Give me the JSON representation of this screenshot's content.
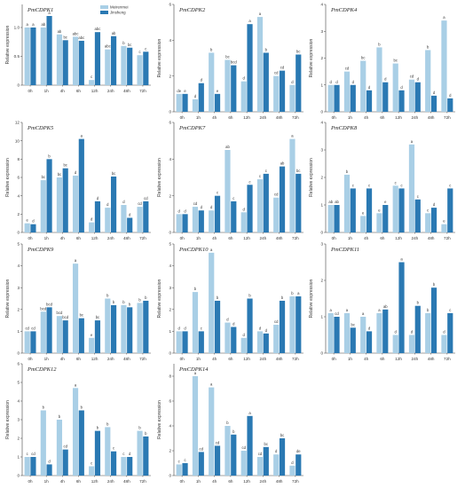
{
  "colors": {
    "series1": "#a9cfe6",
    "series2": "#2a79b3"
  },
  "chart_data": [
    {
      "type": "bar",
      "title": "PmCDPK1",
      "ylabel": "Relative expression",
      "ylim": [
        0,
        1.4
      ],
      "yticks": [
        0,
        0.5,
        1.0
      ],
      "categories": [
        "0h",
        "1h",
        "4h",
        "6h",
        "12h",
        "24h",
        "48h",
        "72h"
      ],
      "legend": {
        "entries": [
          "Meirenmei",
          "Jinsheng"
        ],
        "placement": "top-center"
      },
      "series": [
        {
          "name": "Meirenmei",
          "values": [
            1.0,
            1.0,
            0.88,
            0.84,
            0.09,
            0.62,
            0.68,
            0.52
          ],
          "labels": [
            "a",
            "ab",
            "ab",
            "abc",
            "c",
            "abc",
            "b",
            "c"
          ]
        },
        {
          "name": "Jinsheng",
          "values": [
            1.0,
            1.2,
            0.78,
            0.77,
            0.92,
            0.85,
            0.65,
            0.58
          ],
          "labels": [
            "a",
            "a",
            "bc",
            "abc",
            "abc",
            "ab",
            "bc",
            "c"
          ]
        }
      ]
    },
    {
      "type": "bar",
      "title": "PmCDPK2",
      "ylabel": "Relative expression",
      "ylim": [
        0,
        6
      ],
      "yticks": [
        0,
        2,
        4,
        6
      ],
      "categories": [
        "0h",
        "1h",
        "4h",
        "6h",
        "12h",
        "24h",
        "48h",
        "72h"
      ],
      "series": [
        {
          "name": "Meirenmei",
          "values": [
            1.0,
            0.7,
            3.3,
            2.9,
            1.7,
            5.3,
            2.0,
            1.5
          ],
          "labels": [
            "de",
            "d",
            "b",
            "bc",
            "d",
            "a",
            "cd",
            "d"
          ]
        },
        {
          "name": "Jinsheng",
          "values": [
            1.0,
            1.6,
            1.0,
            2.6,
            4.9,
            3.3,
            2.3,
            3.2
          ],
          "labels": [
            "e",
            "d",
            "e",
            "bcd",
            "a",
            "b",
            "cd",
            "bc"
          ]
        }
      ]
    },
    {
      "type": "bar",
      "title": "PmCDPK4",
      "ylabel": "Relative expression",
      "ylim": [
        0,
        4
      ],
      "yticks": [
        0,
        1,
        2,
        3,
        4
      ],
      "categories": [
        "0h",
        "1h",
        "4h",
        "6h",
        "12h",
        "24h",
        "48h",
        "72h"
      ],
      "series": [
        {
          "name": "Meirenmei",
          "values": [
            1.0,
            1.5,
            1.9,
            2.4,
            1.8,
            1.2,
            2.3,
            3.4
          ],
          "labels": [
            "d",
            "cd",
            "bc",
            "b",
            "bc",
            "cd",
            "b",
            "a"
          ]
        },
        {
          "name": "Jinsheng",
          "values": [
            1.0,
            1.0,
            0.8,
            1.1,
            0.8,
            1.1,
            0.6,
            0.5
          ],
          "labels": [
            "d",
            "d",
            "d",
            "d",
            "d",
            "d",
            "d",
            "d"
          ]
        }
      ]
    },
    {
      "type": "bar",
      "title": "PmCDPK5",
      "ylabel": "Relative expression",
      "ylim": [
        0,
        12
      ],
      "yticks": [
        0,
        2,
        4,
        6,
        8,
        10,
        12
      ],
      "categories": [
        "0h",
        "1h",
        "4h",
        "6h",
        "12h",
        "24h",
        "48h",
        "72h"
      ],
      "series": [
        {
          "name": "Meirenmei",
          "values": [
            1.0,
            5.7,
            6.0,
            6.2,
            1.1,
            2.7,
            3.0,
            2.8
          ],
          "labels": [
            "e",
            "bc",
            "bc",
            "d",
            "d",
            "d",
            "d",
            "cd"
          ]
        },
        {
          "name": "Jinsheng",
          "values": [
            0.9,
            8.0,
            7.0,
            10.2,
            3.4,
            6.1,
            1.6,
            3.4
          ],
          "labels": [
            "d",
            "b",
            "bc",
            "a",
            "d",
            "bc",
            "d",
            "cd"
          ]
        }
      ]
    },
    {
      "type": "bar",
      "title": "PmCDPK7",
      "ylabel": "Relative expression",
      "ylim": [
        0,
        6
      ],
      "yticks": [
        0,
        2,
        4,
        6
      ],
      "categories": [
        "0h",
        "1h",
        "4h",
        "6h",
        "12h",
        "24h",
        "48h",
        "72h"
      ],
      "series": [
        {
          "name": "Meirenmei",
          "values": [
            1.0,
            1.4,
            1.2,
            4.5,
            1.1,
            2.9,
            1.9,
            5.1
          ],
          "labels": [
            "d",
            "cd",
            "d",
            "ab",
            "d",
            "c",
            "cd",
            "a"
          ]
        },
        {
          "name": "Jinsheng",
          "values": [
            1.0,
            1.2,
            2.0,
            1.7,
            2.6,
            3.2,
            3.6,
            3.2
          ],
          "labels": [
            "d",
            "d",
            "c",
            "c",
            "c",
            "c",
            "ab",
            "bc"
          ]
        }
      ]
    },
    {
      "type": "bar",
      "title": "PmCDPK8",
      "ylabel": "Relative expression",
      "ylim": [
        0,
        4
      ],
      "yticks": [
        0,
        1,
        2,
        3,
        4
      ],
      "categories": [
        "0h",
        "1h",
        "4h",
        "6h",
        "12h",
        "24h",
        "48h",
        "72h"
      ],
      "series": [
        {
          "name": "Meirenmei",
          "values": [
            1.0,
            2.1,
            0.6,
            0.7,
            1.7,
            3.2,
            0.7,
            0.3
          ],
          "labels": [
            "ab",
            "b",
            "e",
            "e",
            "c",
            "a",
            "c",
            "e"
          ]
        },
        {
          "name": "Jinsheng",
          "values": [
            1.0,
            1.6,
            1.6,
            1.0,
            1.6,
            1.2,
            0.9,
            1.6
          ],
          "labels": [
            "ab",
            "c",
            "c",
            "e",
            "c",
            "c",
            "d",
            "c"
          ]
        }
      ]
    },
    {
      "type": "bar",
      "title": "PmCDPK9",
      "ylabel": "Relative expression",
      "ylim": [
        0,
        5
      ],
      "yticks": [
        0,
        1,
        2,
        3,
        4,
        5
      ],
      "categories": [
        "0h",
        "1h",
        "4h",
        "6h",
        "12h",
        "24h",
        "48h",
        "72h"
      ],
      "series": [
        {
          "name": "Meirenmei",
          "values": [
            1.0,
            1.9,
            1.7,
            4.1,
            0.7,
            2.5,
            2.2,
            2.3
          ],
          "labels": [
            "cd",
            "bcd",
            "bcd",
            "a",
            "e",
            "b",
            "b",
            "b"
          ]
        },
        {
          "name": "Jinsheng",
          "values": [
            1.0,
            2.1,
            1.5,
            1.6,
            1.5,
            2.2,
            2.1,
            2.4
          ],
          "labels": [
            "cd",
            "bcd",
            "bcd",
            "bc",
            "bc",
            "b",
            "b",
            "b"
          ]
        }
      ]
    },
    {
      "type": "bar",
      "title": "PmCDPK10",
      "ylabel": "Relative expression",
      "ylim": [
        0,
        5
      ],
      "yticks": [
        0,
        1,
        2,
        3,
        4,
        5
      ],
      "categories": [
        "0h",
        "1h",
        "4h",
        "6h",
        "12h",
        "24h",
        "48h",
        "72h"
      ],
      "series": [
        {
          "name": "Meirenmei",
          "values": [
            1.0,
            2.8,
            4.6,
            1.4,
            0.7,
            1.0,
            1.3,
            2.6
          ],
          "labels": [
            "d",
            "b",
            "a",
            "d",
            "d",
            "d",
            "cd",
            "b"
          ]
        },
        {
          "name": "Jinsheng",
          "values": [
            1.0,
            1.0,
            2.4,
            1.2,
            2.5,
            0.9,
            2.4,
            2.6
          ],
          "labels": [
            "d",
            "c",
            "b",
            "d",
            "b",
            "d",
            "b",
            "a"
          ]
        }
      ]
    },
    {
      "type": "bar",
      "title": "PmCDPK11",
      "ylabel": "Relative expression",
      "ylim": [
        0,
        3
      ],
      "yticks": [
        0,
        1,
        2,
        3
      ],
      "categories": [
        "0h",
        "1h",
        "4h",
        "6h",
        "12h",
        "24h",
        "48h",
        "72h"
      ],
      "series": [
        {
          "name": "Meirenmei",
          "values": [
            1.1,
            1.1,
            1.0,
            1.1,
            0.5,
            0.5,
            1.1,
            0.5
          ],
          "labels": [
            "a",
            "a",
            "a",
            "a",
            "d",
            "d",
            "b",
            "d"
          ]
        },
        {
          "name": "Jinsheng",
          "values": [
            1.0,
            0.7,
            0.6,
            1.2,
            2.5,
            1.3,
            1.8,
            1.1
          ],
          "labels": [
            "cd",
            "bc",
            "d",
            "ab",
            "a",
            "b",
            "b",
            "c"
          ]
        }
      ]
    },
    {
      "type": "bar",
      "title": "PmCDPK12",
      "ylabel": "Relative expression",
      "ylim": [
        0,
        6
      ],
      "yticks": [
        0,
        1,
        2,
        3,
        4,
        5,
        6
      ],
      "categories": [
        "0h",
        "1h",
        "4h",
        "6h",
        "12h",
        "24h",
        "48h",
        "72h"
      ],
      "series": [
        {
          "name": "Meirenmei",
          "values": [
            1.0,
            3.5,
            3.0,
            4.7,
            0.5,
            2.6,
            1.0,
            2.4
          ],
          "labels": [
            "c",
            "b",
            "b",
            "a",
            "c",
            "b",
            "c",
            "b"
          ]
        },
        {
          "name": "Jinsheng",
          "values": [
            1.0,
            0.6,
            1.4,
            3.5,
            2.4,
            1.3,
            1.0,
            2.1
          ],
          "labels": [
            "cd",
            "d",
            "cd",
            "b",
            "b",
            "c",
            "d",
            "b"
          ]
        }
      ]
    },
    {
      "type": "bar",
      "title": "PmCDPK14",
      "ylabel": "Relative expression",
      "ylim": [
        0,
        9
      ],
      "yticks": [
        0,
        2,
        4,
        6,
        8
      ],
      "categories": [
        "0h",
        "1h",
        "4h",
        "6h",
        "12h",
        "24h",
        "48h",
        "72h"
      ],
      "series": [
        {
          "name": "Meirenmei",
          "values": [
            0.9,
            8.0,
            7.1,
            4.0,
            2.0,
            1.5,
            1.7,
            0.8
          ],
          "labels": [
            "c",
            "a",
            "a",
            "b",
            "cd",
            "cd",
            "d",
            "d"
          ]
        },
        {
          "name": "Jinsheng",
          "values": [
            1.0,
            1.9,
            2.4,
            3.3,
            4.8,
            2.3,
            3.0,
            1.7
          ],
          "labels": [
            "c",
            "cd",
            "cd",
            "b",
            "a",
            "bc",
            "bc",
            "de"
          ]
        }
      ]
    }
  ]
}
